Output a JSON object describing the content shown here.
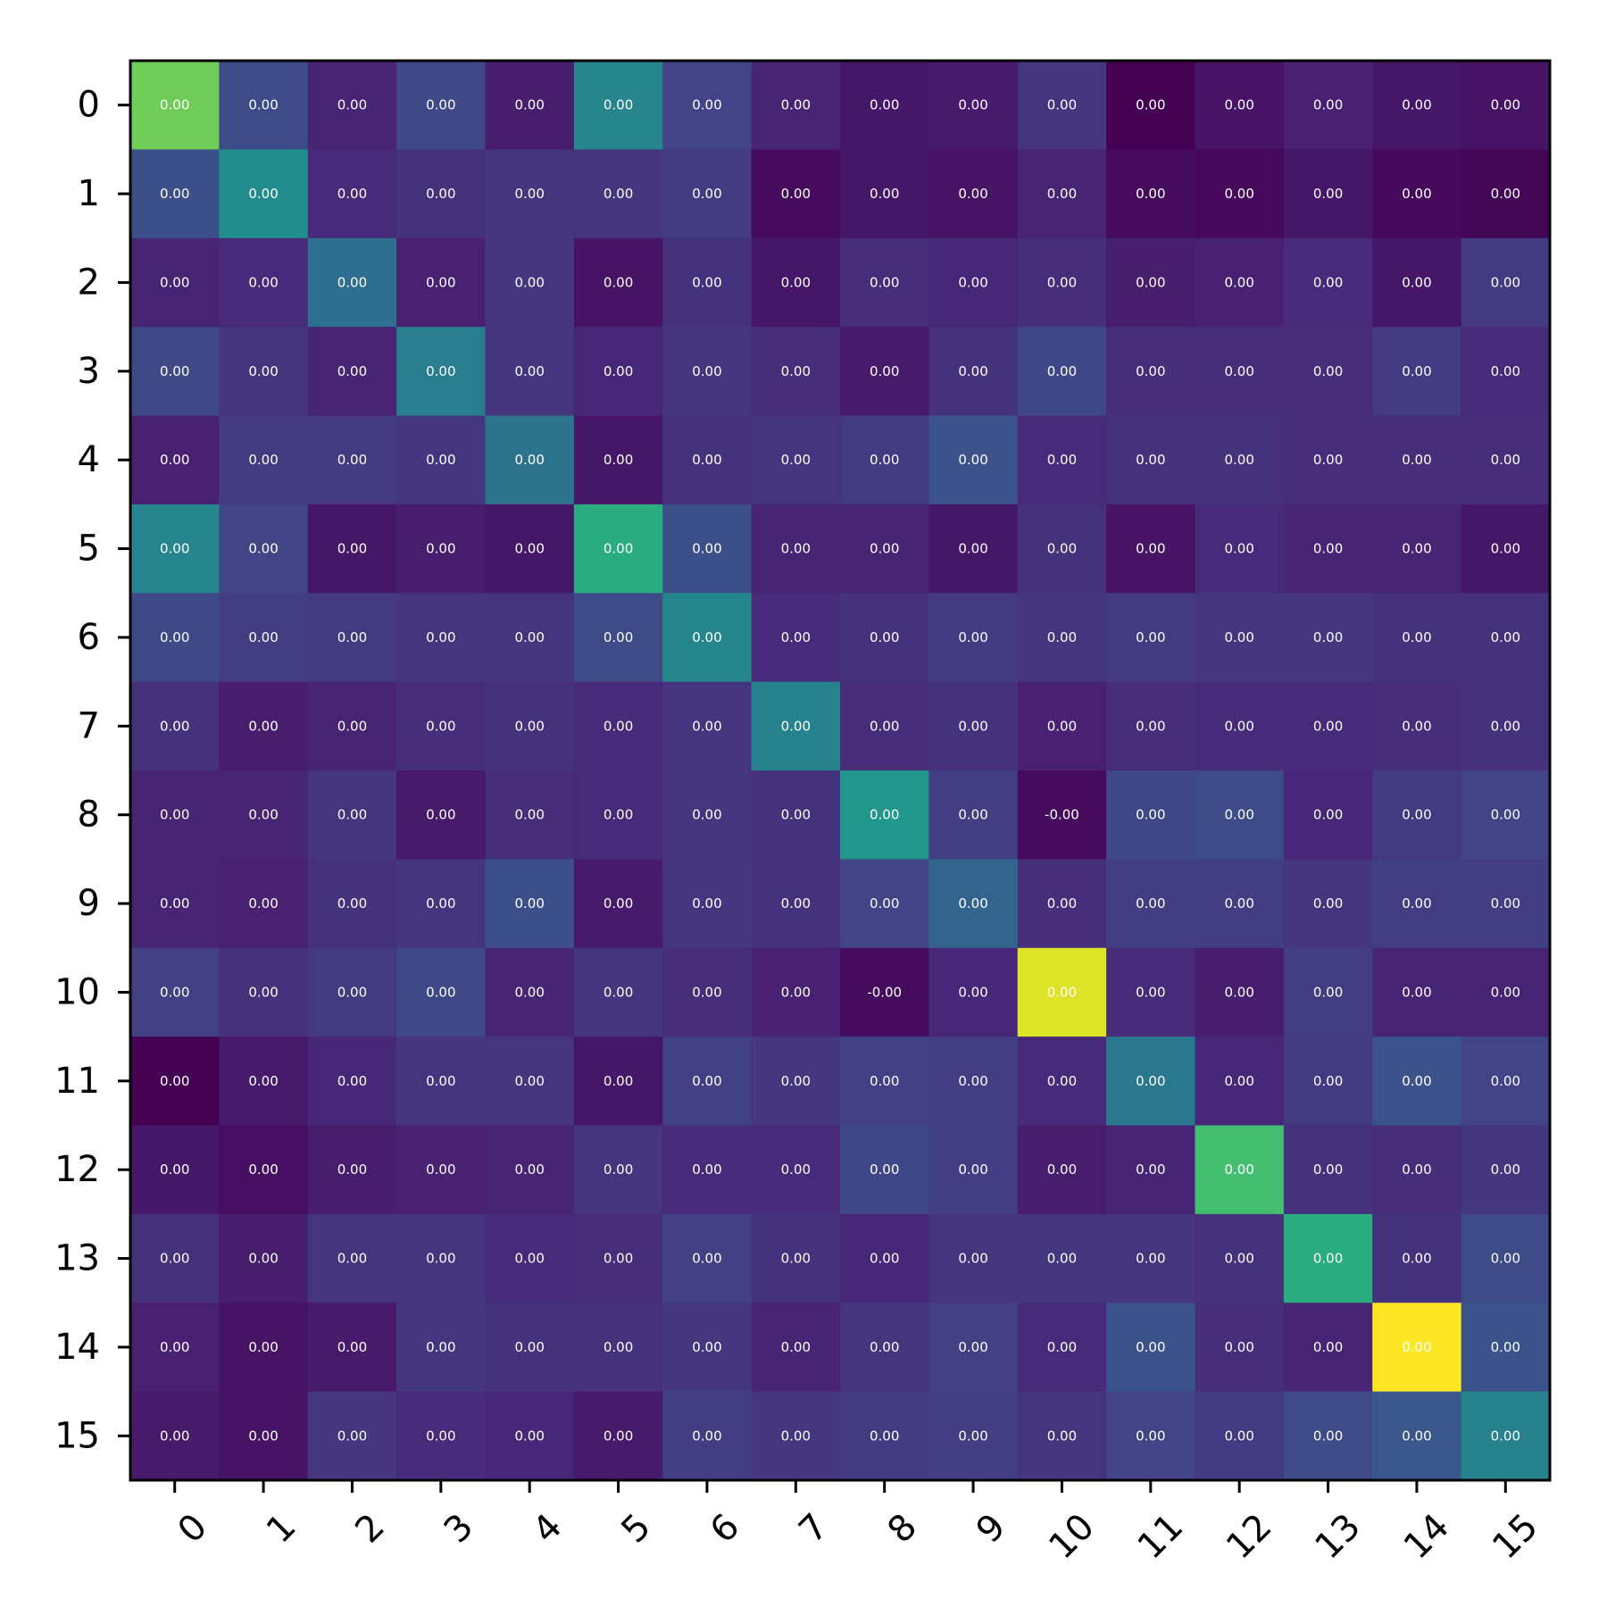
{
  "chart_data": {
    "type": "heatmap",
    "title": "",
    "xlabel": "",
    "ylabel": "",
    "x_categories": [
      "0",
      "1",
      "2",
      "3",
      "4",
      "5",
      "6",
      "7",
      "8",
      "9",
      "10",
      "11",
      "12",
      "13",
      "14",
      "15"
    ],
    "y_categories": [
      "0",
      "1",
      "2",
      "3",
      "4",
      "5",
      "6",
      "7",
      "8",
      "9",
      "10",
      "11",
      "12",
      "13",
      "14",
      "15"
    ],
    "colormap": "viridis",
    "value_range": [
      0,
      1
    ],
    "intensity": [
      [
        0.78,
        0.23,
        0.1,
        0.22,
        0.08,
        0.45,
        0.2,
        0.1,
        0.06,
        0.07,
        0.15,
        0.0,
        0.05,
        0.09,
        0.06,
        0.05
      ],
      [
        0.24,
        0.48,
        0.12,
        0.14,
        0.15,
        0.16,
        0.17,
        0.03,
        0.06,
        0.05,
        0.1,
        0.03,
        0.02,
        0.06,
        0.02,
        0.01
      ],
      [
        0.1,
        0.12,
        0.36,
        0.09,
        0.16,
        0.05,
        0.14,
        0.06,
        0.13,
        0.11,
        0.13,
        0.08,
        0.09,
        0.12,
        0.06,
        0.17
      ],
      [
        0.22,
        0.15,
        0.1,
        0.42,
        0.16,
        0.11,
        0.15,
        0.13,
        0.07,
        0.14,
        0.21,
        0.13,
        0.13,
        0.13,
        0.17,
        0.12
      ],
      [
        0.09,
        0.17,
        0.17,
        0.16,
        0.38,
        0.06,
        0.14,
        0.15,
        0.17,
        0.25,
        0.12,
        0.14,
        0.14,
        0.13,
        0.13,
        0.13
      ],
      [
        0.45,
        0.2,
        0.06,
        0.08,
        0.06,
        0.62,
        0.24,
        0.1,
        0.1,
        0.06,
        0.14,
        0.05,
        0.12,
        0.1,
        0.1,
        0.06
      ],
      [
        0.22,
        0.18,
        0.17,
        0.15,
        0.15,
        0.23,
        0.46,
        0.12,
        0.14,
        0.17,
        0.15,
        0.17,
        0.16,
        0.16,
        0.14,
        0.14
      ],
      [
        0.14,
        0.08,
        0.1,
        0.13,
        0.14,
        0.12,
        0.15,
        0.44,
        0.13,
        0.14,
        0.09,
        0.13,
        0.12,
        0.12,
        0.13,
        0.14
      ],
      [
        0.1,
        0.1,
        0.15,
        0.07,
        0.13,
        0.12,
        0.15,
        0.14,
        0.52,
        0.18,
        0.03,
        0.21,
        0.23,
        0.11,
        0.17,
        0.2
      ],
      [
        0.1,
        0.09,
        0.14,
        0.15,
        0.24,
        0.07,
        0.16,
        0.14,
        0.2,
        0.32,
        0.13,
        0.18,
        0.18,
        0.15,
        0.18,
        0.18
      ],
      [
        0.19,
        0.14,
        0.17,
        0.22,
        0.1,
        0.15,
        0.13,
        0.09,
        0.03,
        0.11,
        0.95,
        0.12,
        0.08,
        0.18,
        0.1,
        0.1
      ],
      [
        0.0,
        0.07,
        0.11,
        0.15,
        0.15,
        0.06,
        0.19,
        0.16,
        0.19,
        0.18,
        0.12,
        0.4,
        0.11,
        0.17,
        0.25,
        0.2
      ],
      [
        0.06,
        0.04,
        0.08,
        0.09,
        0.1,
        0.15,
        0.12,
        0.12,
        0.21,
        0.18,
        0.08,
        0.1,
        0.7,
        0.14,
        0.13,
        0.16
      ],
      [
        0.14,
        0.08,
        0.15,
        0.15,
        0.12,
        0.13,
        0.19,
        0.14,
        0.11,
        0.15,
        0.16,
        0.15,
        0.14,
        0.62,
        0.14,
        0.23
      ],
      [
        0.09,
        0.05,
        0.07,
        0.16,
        0.14,
        0.14,
        0.16,
        0.1,
        0.15,
        0.19,
        0.12,
        0.25,
        0.13,
        0.1,
        1.0,
        0.26
      ],
      [
        0.07,
        0.05,
        0.16,
        0.12,
        0.11,
        0.07,
        0.18,
        0.16,
        0.17,
        0.18,
        0.15,
        0.2,
        0.17,
        0.23,
        0.27,
        0.44
      ]
    ],
    "cell_labels": [
      [
        "0.00",
        "0.00",
        "0.00",
        "0.00",
        "0.00",
        "0.00",
        "0.00",
        "0.00",
        "0.00",
        "0.00",
        "0.00",
        "0.00",
        "0.00",
        "0.00",
        "0.00",
        "0.00"
      ],
      [
        "0.00",
        "0.00",
        "0.00",
        "0.00",
        "0.00",
        "0.00",
        "0.00",
        "0.00",
        "0.00",
        "0.00",
        "0.00",
        "0.00",
        "0.00",
        "0.00",
        "0.00",
        "0.00"
      ],
      [
        "0.00",
        "0.00",
        "0.00",
        "0.00",
        "0.00",
        "0.00",
        "0.00",
        "0.00",
        "0.00",
        "0.00",
        "0.00",
        "0.00",
        "0.00",
        "0.00",
        "0.00",
        "0.00"
      ],
      [
        "0.00",
        "0.00",
        "0.00",
        "0.00",
        "0.00",
        "0.00",
        "0.00",
        "0.00",
        "0.00",
        "0.00",
        "0.00",
        "0.00",
        "0.00",
        "0.00",
        "0.00",
        "0.00"
      ],
      [
        "0.00",
        "0.00",
        "0.00",
        "0.00",
        "0.00",
        "0.00",
        "0.00",
        "0.00",
        "0.00",
        "0.00",
        "0.00",
        "0.00",
        "0.00",
        "0.00",
        "0.00",
        "0.00"
      ],
      [
        "0.00",
        "0.00",
        "0.00",
        "0.00",
        "0.00",
        "0.00",
        "0.00",
        "0.00",
        "0.00",
        "0.00",
        "0.00",
        "0.00",
        "0.00",
        "0.00",
        "0.00",
        "0.00"
      ],
      [
        "0.00",
        "0.00",
        "0.00",
        "0.00",
        "0.00",
        "0.00",
        "0.00",
        "0.00",
        "0.00",
        "0.00",
        "0.00",
        "0.00",
        "0.00",
        "0.00",
        "0.00",
        "0.00"
      ],
      [
        "0.00",
        "0.00",
        "0.00",
        "0.00",
        "0.00",
        "0.00",
        "0.00",
        "0.00",
        "0.00",
        "0.00",
        "0.00",
        "0.00",
        "0.00",
        "0.00",
        "0.00",
        "0.00"
      ],
      [
        "0.00",
        "0.00",
        "0.00",
        "0.00",
        "0.00",
        "0.00",
        "0.00",
        "0.00",
        "0.00",
        "0.00",
        "-0.00",
        "0.00",
        "0.00",
        "0.00",
        "0.00",
        "0.00"
      ],
      [
        "0.00",
        "0.00",
        "0.00",
        "0.00",
        "0.00",
        "0.00",
        "0.00",
        "0.00",
        "0.00",
        "0.00",
        "0.00",
        "0.00",
        "0.00",
        "0.00",
        "0.00",
        "0.00"
      ],
      [
        "0.00",
        "0.00",
        "0.00",
        "0.00",
        "0.00",
        "0.00",
        "0.00",
        "0.00",
        "-0.00",
        "0.00",
        "0.00",
        "0.00",
        "0.00",
        "0.00",
        "0.00",
        "0.00"
      ],
      [
        "0.00",
        "0.00",
        "0.00",
        "0.00",
        "0.00",
        "0.00",
        "0.00",
        "0.00",
        "0.00",
        "0.00",
        "0.00",
        "0.00",
        "0.00",
        "0.00",
        "0.00",
        "0.00"
      ],
      [
        "0.00",
        "0.00",
        "0.00",
        "0.00",
        "0.00",
        "0.00",
        "0.00",
        "0.00",
        "0.00",
        "0.00",
        "0.00",
        "0.00",
        "0.00",
        "0.00",
        "0.00",
        "0.00"
      ],
      [
        "0.00",
        "0.00",
        "0.00",
        "0.00",
        "0.00",
        "0.00",
        "0.00",
        "0.00",
        "0.00",
        "0.00",
        "0.00",
        "0.00",
        "0.00",
        "0.00",
        "0.00",
        "0.00"
      ],
      [
        "0.00",
        "0.00",
        "0.00",
        "0.00",
        "0.00",
        "0.00",
        "0.00",
        "0.00",
        "0.00",
        "0.00",
        "0.00",
        "0.00",
        "0.00",
        "0.00",
        "0.00",
        "0.00"
      ],
      [
        "0.00",
        "0.00",
        "0.00",
        "0.00",
        "0.00",
        "0.00",
        "0.00",
        "0.00",
        "0.00",
        "0.00",
        "0.00",
        "0.00",
        "0.00",
        "0.00",
        "0.00",
        "0.00"
      ]
    ],
    "grid": false,
    "legend": "none"
  }
}
